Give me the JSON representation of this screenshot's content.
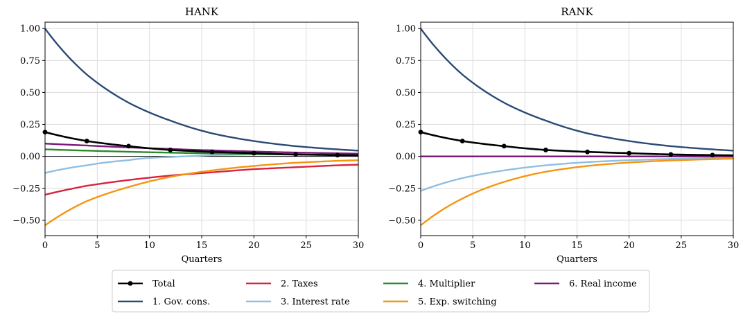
{
  "chart_data": [
    {
      "type": "line",
      "title": "HANK",
      "xlabel": "Quarters",
      "ylabel": "",
      "xlim": [
        0,
        30
      ],
      "ylim": [
        -0.62,
        1.05
      ],
      "xticks": [
        0,
        5,
        10,
        15,
        20,
        25,
        30
      ],
      "yticks": [
        -0.5,
        -0.25,
        0.0,
        0.25,
        0.5,
        0.75,
        1.0
      ],
      "ytick_labels": [
        "−0.50",
        "−0.25",
        "0.00",
        "0.25",
        "0.50",
        "0.75",
        "1.00"
      ],
      "grid": true,
      "x": [
        0,
        4,
        8,
        12,
        16,
        20,
        24,
        28,
        30
      ],
      "series": [
        {
          "name": "Total",
          "color": "#000000",
          "markers": true,
          "values": [
            0.19,
            0.12,
            0.08,
            0.05,
            0.035,
            0.025,
            0.015,
            0.01,
            0.008
          ]
        },
        {
          "name": "1. Gov. cons.",
          "color": "#2b4a74",
          "values": [
            1.0,
            0.64,
            0.42,
            0.28,
            0.18,
            0.12,
            0.08,
            0.055,
            0.045
          ]
        },
        {
          "name": "2. Taxes",
          "color": "#d8223f",
          "values": [
            -0.3,
            -0.23,
            -0.185,
            -0.15,
            -0.125,
            -0.1,
            -0.085,
            -0.07,
            -0.065
          ]
        },
        {
          "name": "3. Interest rate",
          "color": "#8fbfe3",
          "values": [
            -0.13,
            -0.07,
            -0.03,
            -0.005,
            0.01,
            0.015,
            0.015,
            0.012,
            0.01
          ]
        },
        {
          "name": "4. Multiplier",
          "color": "#2a8a2a",
          "values": [
            0.055,
            0.045,
            0.036,
            0.029,
            0.023,
            0.018,
            0.014,
            0.011,
            0.01
          ]
        },
        {
          "name": "5. Exp. switching",
          "color": "#f5950f",
          "values": [
            -0.54,
            -0.35,
            -0.24,
            -0.16,
            -0.11,
            -0.075,
            -0.05,
            -0.035,
            -0.03
          ]
        },
        {
          "name": "6. Real income",
          "color": "#7a1a7a",
          "values": [
            0.1,
            0.085,
            0.07,
            0.058,
            0.047,
            0.038,
            0.03,
            0.024,
            0.021
          ]
        }
      ]
    },
    {
      "type": "line",
      "title": "RANK",
      "xlabel": "Quarters",
      "ylabel": "",
      "xlim": [
        0,
        30
      ],
      "ylim": [
        -0.62,
        1.05
      ],
      "xticks": [
        0,
        5,
        10,
        15,
        20,
        25,
        30
      ],
      "yticks": [
        -0.5,
        -0.25,
        0.0,
        0.25,
        0.5,
        0.75,
        1.0
      ],
      "ytick_labels": [
        "−0.50",
        "−0.25",
        "0.00",
        "0.25",
        "0.50",
        "0.75",
        "1.00"
      ],
      "grid": true,
      "x": [
        0,
        4,
        8,
        12,
        16,
        20,
        24,
        28,
        30
      ],
      "series": [
        {
          "name": "Total",
          "color": "#000000",
          "markers": true,
          "values": [
            0.19,
            0.12,
            0.08,
            0.05,
            0.035,
            0.025,
            0.015,
            0.01,
            0.008
          ]
        },
        {
          "name": "1. Gov. cons.",
          "color": "#2b4a74",
          "values": [
            1.0,
            0.64,
            0.42,
            0.28,
            0.18,
            0.12,
            0.08,
            0.055,
            0.045
          ]
        },
        {
          "name": "2. Taxes",
          "color": "#d8223f",
          "values": [
            0,
            0,
            0,
            0,
            0,
            0,
            0,
            0,
            0
          ]
        },
        {
          "name": "3. Interest rate",
          "color": "#8fbfe3",
          "values": [
            -0.27,
            -0.17,
            -0.11,
            -0.07,
            -0.045,
            -0.03,
            -0.02,
            -0.013,
            -0.01
          ]
        },
        {
          "name": "4. Multiplier",
          "color": "#2a8a2a",
          "values": [
            0,
            0,
            0,
            0,
            0,
            0,
            0,
            0,
            0
          ]
        },
        {
          "name": "5. Exp. switching",
          "color": "#f5950f",
          "values": [
            -0.54,
            -0.33,
            -0.2,
            -0.12,
            -0.075,
            -0.048,
            -0.032,
            -0.022,
            -0.018
          ]
        },
        {
          "name": "6. Real income",
          "color": "#7a1a7a",
          "values": [
            0,
            0,
            0,
            0,
            0,
            0,
            0,
            0,
            0
          ]
        }
      ]
    }
  ],
  "legend": {
    "placement": "bottom-center",
    "entries": [
      {
        "label": "Total",
        "color": "#000000",
        "markers": true
      },
      {
        "label": "1. Gov. cons.",
        "color": "#2b4a74"
      },
      {
        "label": "2. Taxes",
        "color": "#d8223f"
      },
      {
        "label": "3. Interest rate",
        "color": "#8fbfe3"
      },
      {
        "label": "4. Multiplier",
        "color": "#2a8a2a"
      },
      {
        "label": "5. Exp. switching",
        "color": "#f5950f"
      },
      {
        "label": "6. Real income",
        "color": "#7a1a7a"
      }
    ]
  }
}
